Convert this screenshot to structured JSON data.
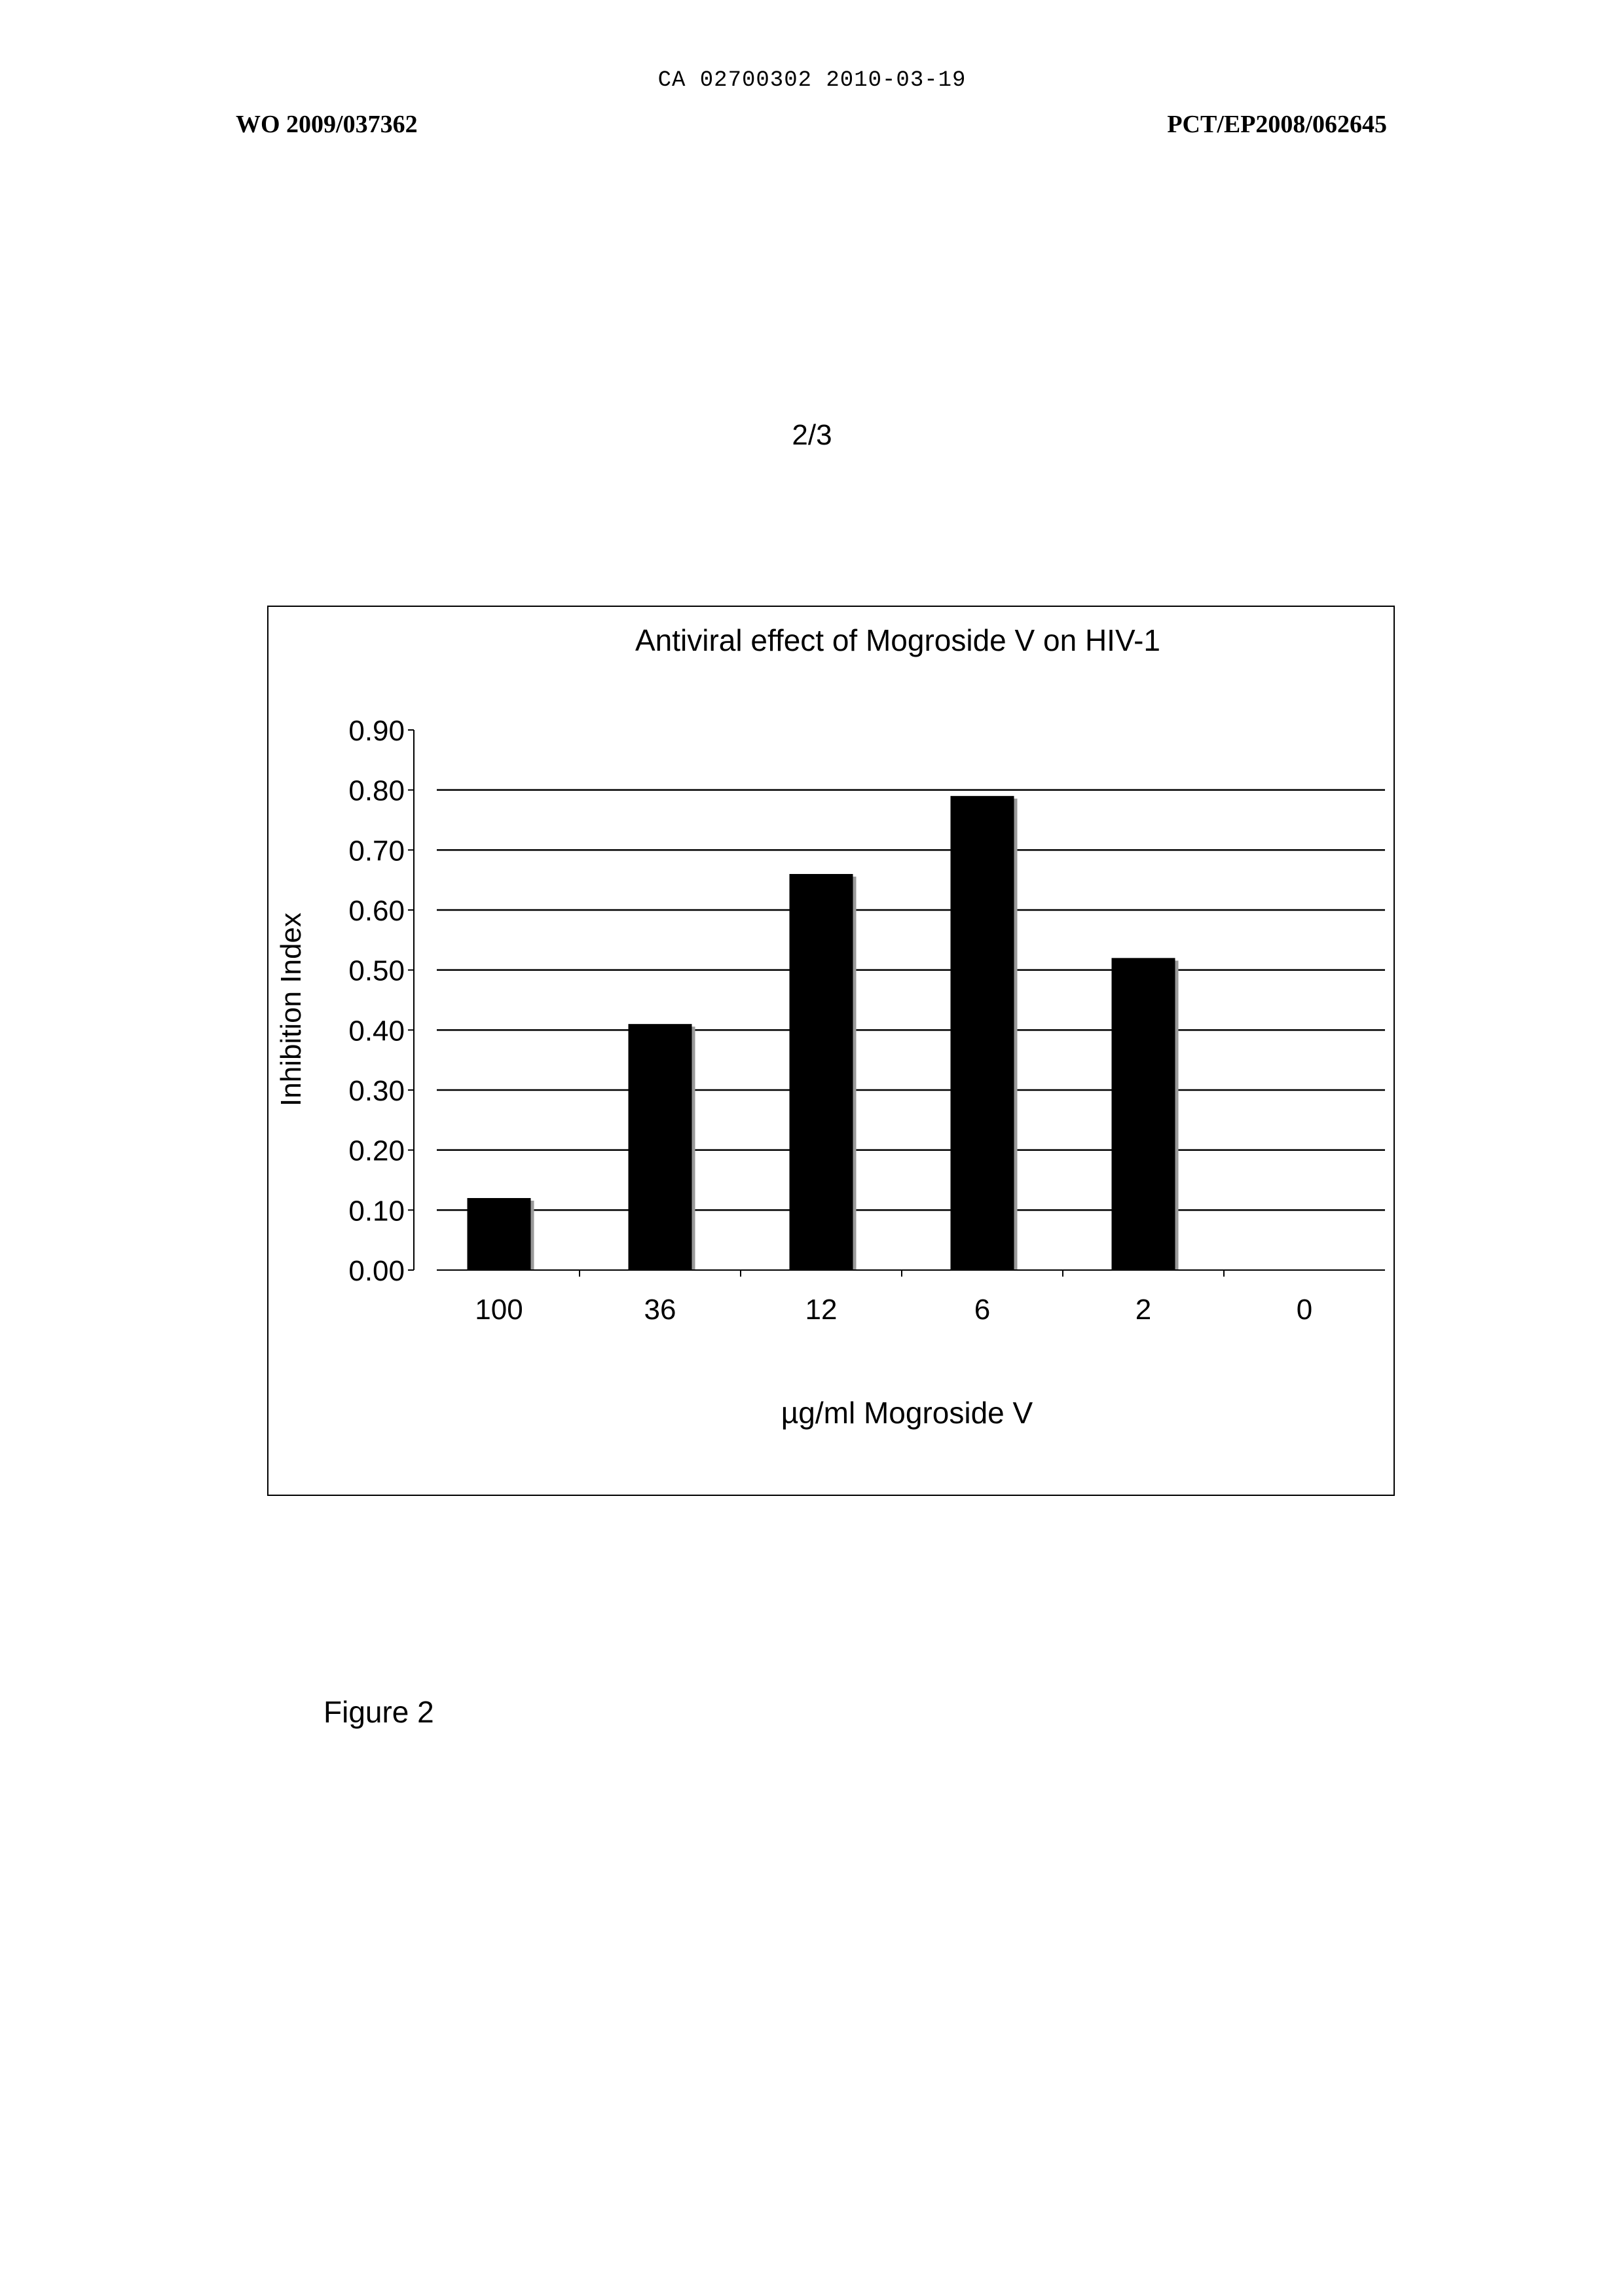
{
  "document": {
    "stamp": "CA 02700302 2010-03-19",
    "publication_number": "WO 2009/037362",
    "application_number": "PCT/EP2008/062645",
    "page_number": "2/3",
    "figure_caption": "Figure 2"
  },
  "chart_data": {
    "type": "bar",
    "title": "Antiviral effect of Mogroside V on HIV-1",
    "xlabel": "µg/ml Mogroside V",
    "ylabel": "Inhibition Index",
    "categories": [
      "100",
      "36",
      "12",
      "6",
      "2",
      "0"
    ],
    "values": [
      0.12,
      0.41,
      0.66,
      0.79,
      0.52,
      0.0
    ],
    "ylim": [
      0,
      0.9
    ],
    "yticks": [
      "0.00",
      "0.10",
      "0.20",
      "0.30",
      "0.40",
      "0.50",
      "0.60",
      "0.70",
      "0.80",
      "0.90"
    ],
    "grid": true,
    "legend": "none",
    "bar_color": "#000000",
    "shadow_color": "#9a9a9a"
  }
}
